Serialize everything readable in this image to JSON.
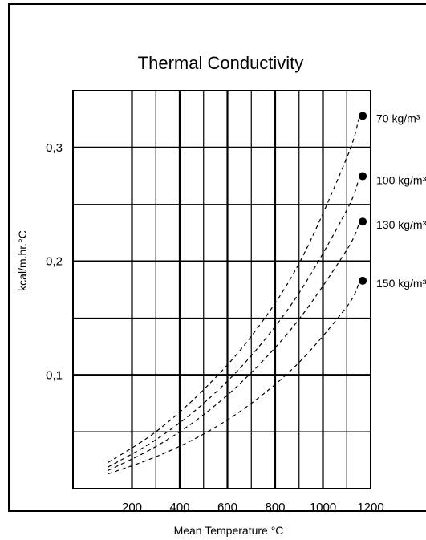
{
  "chart_data": {
    "type": "line",
    "title": "Thermal Conductivity",
    "xlabel": "Mean Temperature °C",
    "ylabel": "kcal/m.hr.°C",
    "xlim": [
      0,
      1200
    ],
    "ylim": [
      0,
      0.35
    ],
    "xticks": [
      "200",
      "400",
      "600",
      "800",
      "1000",
      "1200"
    ],
    "yticks": [
      "0,1",
      "0,2",
      "0,3"
    ],
    "grid": true,
    "legend": "right",
    "series": [
      {
        "name": "70 kg/m³",
        "x": [
          100,
          300,
          500,
          700,
          900,
          1100,
          1150
        ],
        "y": [
          0.023,
          0.05,
          0.087,
          0.134,
          0.198,
          0.291,
          0.325
        ]
      },
      {
        "name": "100 kg/m³",
        "x": [
          100,
          300,
          500,
          700,
          900,
          1100,
          1150
        ],
        "y": [
          0.019,
          0.043,
          0.075,
          0.117,
          0.172,
          0.245,
          0.272
        ]
      },
      {
        "name": "130 kg/m³",
        "x": [
          100,
          300,
          500,
          700,
          900,
          1100,
          1150
        ],
        "y": [
          0.016,
          0.037,
          0.065,
          0.102,
          0.149,
          0.21,
          0.232
        ]
      },
      {
        "name": "150 kg/m³",
        "x": [
          100,
          300,
          500,
          700,
          900,
          1100,
          1150
        ],
        "y": [
          0.013,
          0.028,
          0.048,
          0.075,
          0.111,
          0.16,
          0.18
        ]
      }
    ]
  }
}
